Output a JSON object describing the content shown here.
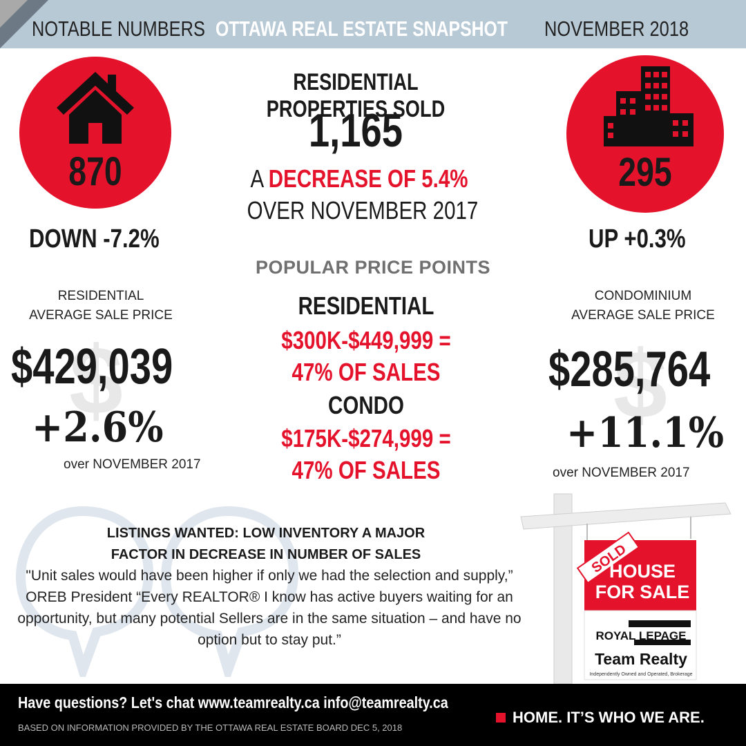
{
  "header": {
    "left": "NOTABLE NUMBERS",
    "title": "OTTAWA REAL ESTATE SNAPSHOT",
    "date": "NOVEMBER 2018"
  },
  "residential_circle": {
    "icon": "house-icon",
    "count": "870",
    "change": "DOWN -7.2%"
  },
  "condo_circle": {
    "icon": "buildings-icon",
    "count": "295",
    "change": "UP +0.3%"
  },
  "sold": {
    "title": "RESIDENTIAL PROPERTIES SOLD",
    "total": "1,165",
    "line1_prefix": "A ",
    "line1_highlight": "DECREASE OF 5.4%",
    "line2": "OVER NOVEMBER 2017"
  },
  "popular": {
    "title": "POPULAR PRICE POINTS",
    "residential_label": "RESIDENTIAL",
    "residential_range": "$300K-$449,999 =",
    "residential_share": "47% OF SALES",
    "condo_label": "CONDO",
    "condo_range": "$175K-$274,999 =",
    "condo_share": "47% OF SALES"
  },
  "residential_price": {
    "label_line1": "RESIDENTIAL",
    "label_line2": "AVERAGE SALE PRICE",
    "value": "$429,039",
    "change": "+2.6%",
    "period": "over NOVEMBER 2017"
  },
  "condo_price": {
    "label_line1": "CONDOMINIUM",
    "label_line2": "AVERAGE SALE PRICE",
    "value": "$285,764",
    "change": "+11.1%",
    "period": "over NOVEMBER 2017"
  },
  "quote": {
    "title_line1": "LISTINGS WANTED: LOW INVENTORY A MAJOR",
    "title_line2": "FACTOR IN DECREASE IN NUMBER OF SALES",
    "body": "\"Unit sales would have been higher if only we had the selection and supply,” OREB President “Every REALTOR® I know has active buyers waiting for an opportunity, but many potential Sellers are in the same situation – and have no option but to stay put.”"
  },
  "sign": {
    "sold": "SOLD",
    "line1": "HOUSE",
    "line2": "FOR SALE",
    "brand1": "ROYAL LEPAGE",
    "brand2": "Team Realty",
    "tagline": "Independently Owned and Operated, Brokerage"
  },
  "footer": {
    "contact": "Have questions? Let's chat www.teamrealty.ca info@teamrealty.ca",
    "source": "BASED ON INFORMATION PROVIDED BY THE OTTAWA REAL ESTATE BOARD DEC 5, 2018",
    "tagline": "HOME. IT’S WHO WE ARE."
  },
  "colors": {
    "accent_red": "#e5122b",
    "header_blue": "#b8c9d6",
    "footer_black": "#000000"
  }
}
